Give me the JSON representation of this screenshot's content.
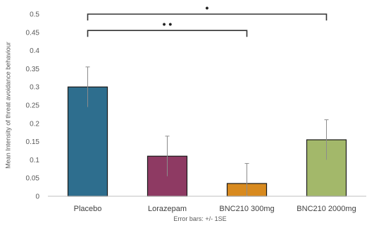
{
  "chart_data": {
    "type": "bar",
    "categories": [
      "Placebo",
      "Lorazepam",
      "BNC210 300mg",
      "BNC210 2000mg"
    ],
    "values": [
      0.3,
      0.11,
      0.035,
      0.155
    ],
    "errors": [
      0.055,
      0.055,
      0.055,
      0.055
    ],
    "colors": [
      "#2e6e8e",
      "#8e3a63",
      "#d88a1f",
      "#a3b86a"
    ],
    "ylabel": "Mean Intensity of threat avoidance behaviour",
    "footnote": "Error bars: +/- 1SE",
    "ylim": [
      0,
      0.5
    ],
    "yticks": [
      {
        "value": 0,
        "label": "0"
      },
      {
        "value": 0.05,
        "label": "0.05"
      },
      {
        "value": 0.1,
        "label": "0.1"
      },
      {
        "value": 0.15,
        "label": "0.15"
      },
      {
        "value": 0.2,
        "label": "0.2"
      },
      {
        "value": 0.25,
        "label": "0.25"
      },
      {
        "value": 0.3,
        "label": "0.3"
      },
      {
        "value": 0.35,
        "label": "0.35"
      },
      {
        "value": 0.4,
        "label": "0.4"
      },
      {
        "value": 0.45,
        "label": "0.45"
      },
      {
        "value": 0.5,
        "label": "0.5"
      }
    ],
    "grid": false,
    "significance": [
      {
        "from": 0,
        "to": 3,
        "level": 0.5,
        "label": "•"
      },
      {
        "from": 0,
        "to": 2,
        "level": 0.455,
        "label": "• •"
      }
    ]
  }
}
